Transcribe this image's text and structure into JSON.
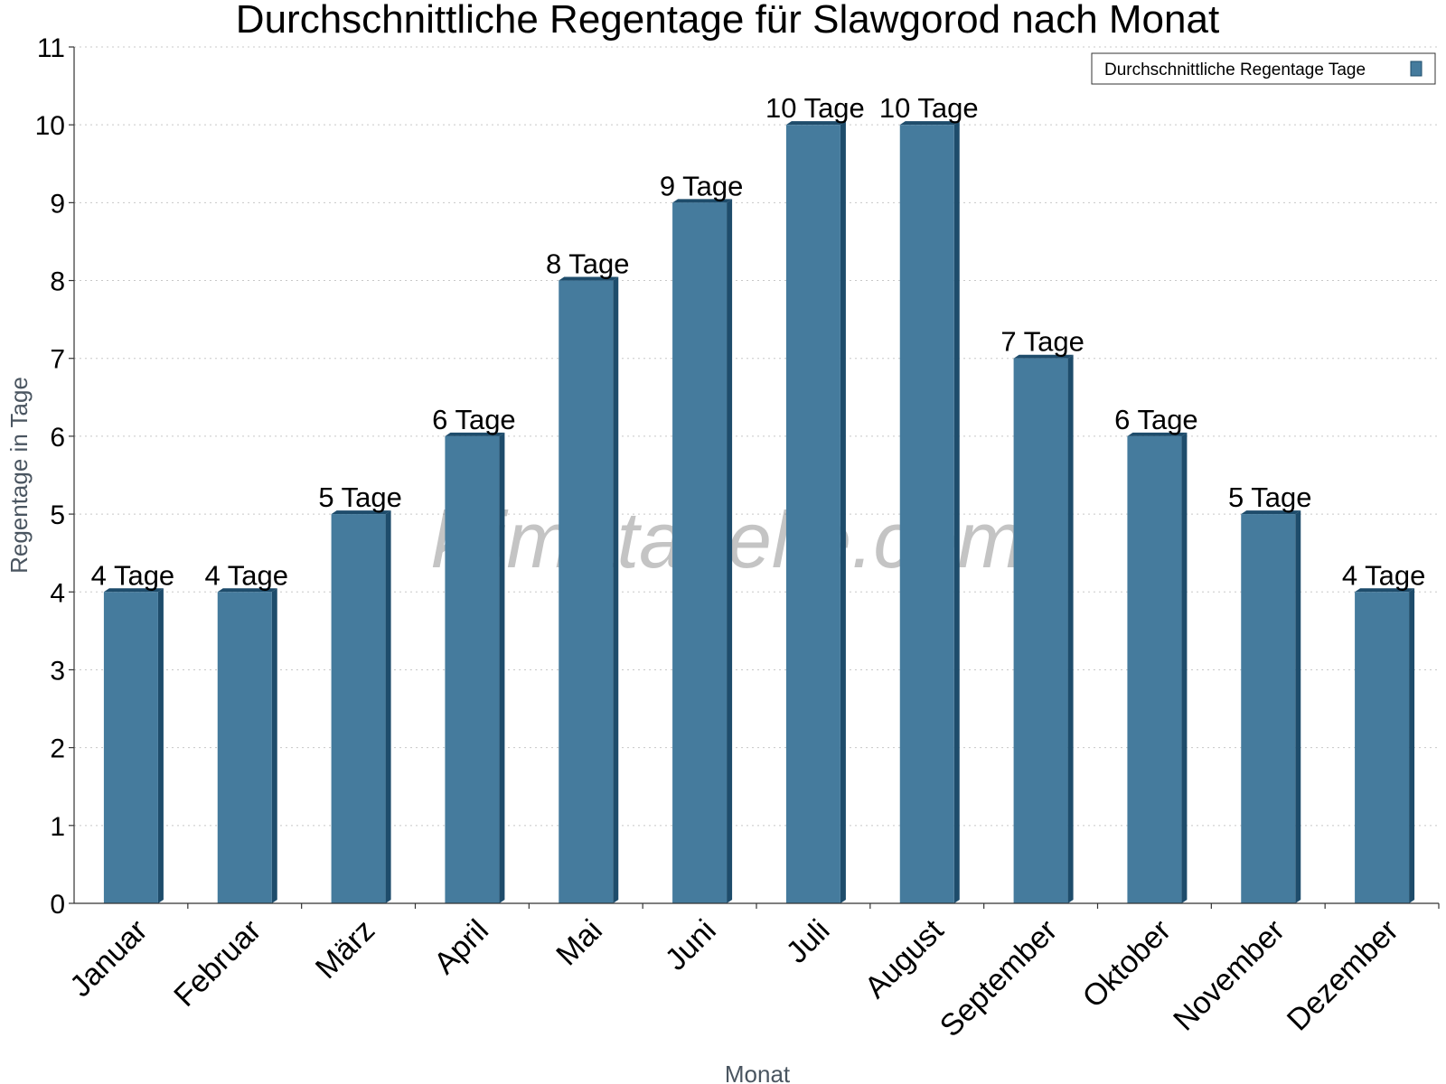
{
  "chart_data": {
    "type": "bar",
    "title": "Durchschnittliche Regentage für Slawgorod nach Monat",
    "xlabel": "Monat",
    "ylabel": "Regentage in Tage",
    "ylim": [
      0,
      11
    ],
    "yticks": [
      "0",
      "1",
      "2",
      "3",
      "4",
      "5",
      "6",
      "7",
      "8",
      "9",
      "10",
      "11"
    ],
    "grid": true,
    "legend_position": "top-right",
    "watermark": "klimatabelle.com",
    "categories": [
      "Januar",
      "Februar",
      "März",
      "April",
      "Mai",
      "Juni",
      "Juli",
      "August",
      "September",
      "Oktober",
      "November",
      "Dezember"
    ],
    "series": [
      {
        "name": "Durchschnittliche Regentage Tage",
        "color": "#457b9d",
        "values": [
          4,
          4,
          5,
          6,
          8,
          9,
          10,
          10,
          7,
          6,
          5,
          4
        ],
        "labels": [
          "4 Tage",
          "4 Tage",
          "5 Tage",
          "6 Tage",
          "8 Tage",
          "9 Tage",
          "10 Tage",
          "10 Tage",
          "7 Tage",
          "6 Tage",
          "5 Tage",
          "4 Tage"
        ]
      }
    ]
  }
}
